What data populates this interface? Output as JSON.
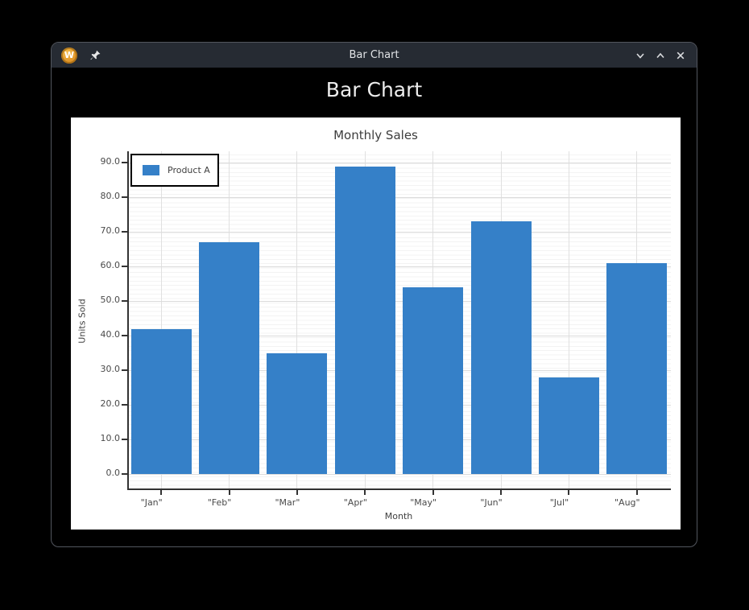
{
  "window": {
    "titlebar": {
      "logo_letter": "W",
      "title": "Bar Chart",
      "icons": [
        "pin-icon",
        "chevron-down-icon",
        "chevron-up-icon",
        "close-icon"
      ]
    },
    "heading": "Bar Chart"
  },
  "colors": {
    "bar": "#3580c8",
    "titlebar_bg": "#262b33",
    "window_bg": "#000000",
    "figure_bg": "#ffffff",
    "grid_major": "#dbdbdb",
    "grid_minor": "#f3f3f3",
    "axis_line": "#333333",
    "logo_orange": "#dd9126"
  },
  "chart_data": {
    "type": "bar",
    "title": "Monthly Sales",
    "xlabel": "Month",
    "ylabel": "Units Sold",
    "categories": [
      "\"Jan\"",
      "\"Feb\"",
      "\"Mar\"",
      "\"Apr\"",
      "\"May\"",
      "\"Jun\"",
      "\"Jul\"",
      "\"Aug\""
    ],
    "series": [
      {
        "name": "Product A",
        "values": [
          42,
          67,
          35,
          89,
          54,
          73,
          28,
          61
        ]
      }
    ],
    "bar_color": "#3580c8",
    "y_ticks": [
      0,
      10,
      20,
      30,
      40,
      50,
      60,
      70,
      80,
      90
    ],
    "y_tick_labels": [
      "0.0",
      "10.0",
      "20.0",
      "30.0",
      "40.0",
      "50.0",
      "60.0",
      "70.0",
      "80.0",
      "90.0"
    ],
    "ylim": [
      -4.65,
      93.35
    ],
    "grid": true,
    "legend_position": "top-left"
  }
}
